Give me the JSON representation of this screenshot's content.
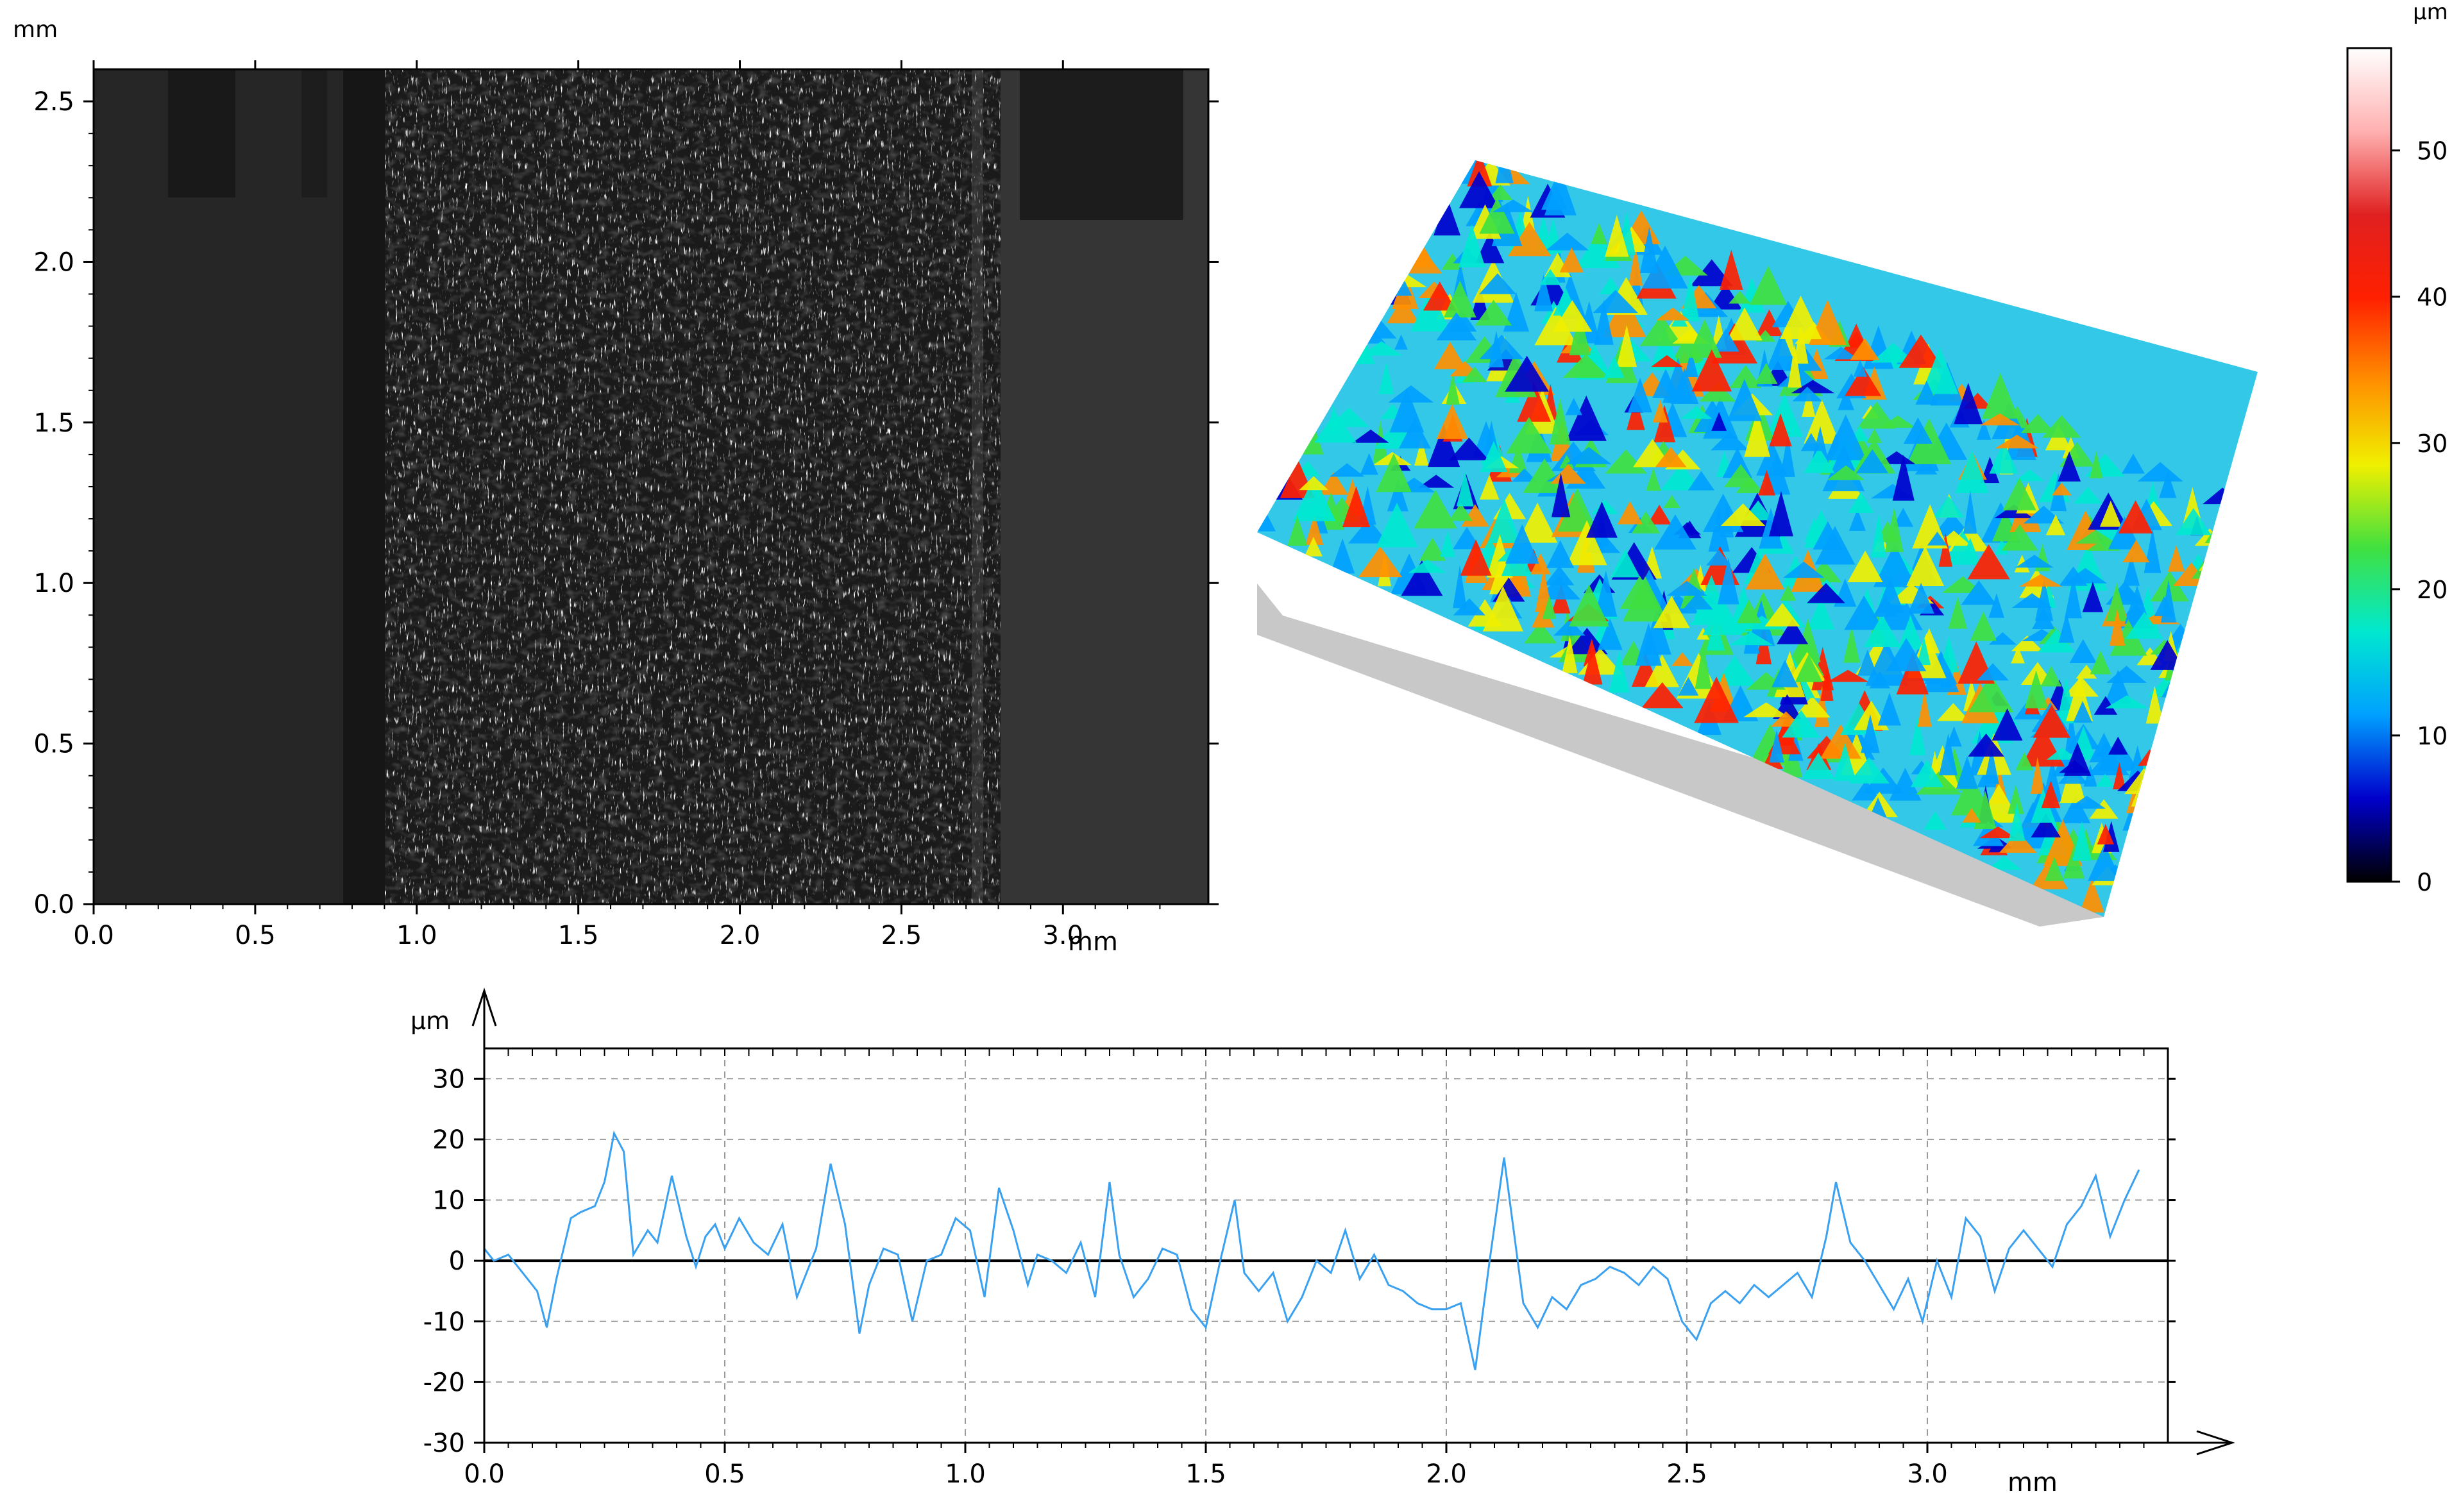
{
  "image_panel": {
    "y_unit": "mm",
    "x_unit": "mm",
    "x_ticks": [
      "0.0",
      "0.5",
      "1.0",
      "1.5",
      "2.0",
      "2.5",
      "3.0"
    ],
    "y_ticks": [
      "0.0",
      "0.5",
      "1.0",
      "1.5",
      "2.0",
      "2.5"
    ],
    "x_range": [
      0,
      3.45
    ],
    "y_range": [
      0,
      2.6
    ]
  },
  "colorbar": {
    "unit": "µm",
    "ticks": [
      "0",
      "10",
      "20",
      "30",
      "40",
      "50"
    ],
    "range": [
      0,
      57
    ],
    "stops": [
      "#000000",
      "#0000cc",
      "#00a0ff",
      "#00e8d0",
      "#40e040",
      "#f0f000",
      "#ff9000",
      "#ff2000",
      "#e02020",
      "#ffb0b0",
      "#ffffff"
    ]
  },
  "chart_data": {
    "type": "line",
    "title": "",
    "xlabel": "mm",
    "ylabel": "µm",
    "xlim": [
      0,
      3.5
    ],
    "ylim": [
      -30,
      35
    ],
    "grid": true,
    "x_ticks": [
      "0.0",
      "0.5",
      "1.0",
      "1.5",
      "2.0",
      "2.5",
      "3.0"
    ],
    "y_ticks": [
      "30",
      "20",
      "10",
      "0",
      "-10",
      "-20",
      "-30"
    ],
    "line_color": "#3aa0f0",
    "series": [
      {
        "x": [
          0.0,
          0.02,
          0.05,
          0.08,
          0.11,
          0.13,
          0.15,
          0.18,
          0.2,
          0.23,
          0.25,
          0.27,
          0.29,
          0.31,
          0.34,
          0.36,
          0.39,
          0.42,
          0.44,
          0.46,
          0.48,
          0.5,
          0.53,
          0.56,
          0.59,
          0.62,
          0.65,
          0.69,
          0.72,
          0.75,
          0.78,
          0.8,
          0.83,
          0.86,
          0.89,
          0.92,
          0.95,
          0.98,
          1.01,
          1.04,
          1.07,
          1.1,
          1.13,
          1.15,
          1.18,
          1.21,
          1.24,
          1.27,
          1.3,
          1.32,
          1.35,
          1.38,
          1.41,
          1.44,
          1.47,
          1.5,
          1.53,
          1.56,
          1.58,
          1.61,
          1.64,
          1.67,
          1.7,
          1.73,
          1.76,
          1.79,
          1.82,
          1.85,
          1.88,
          1.91,
          1.94,
          1.97,
          2.0,
          2.03,
          2.06,
          2.09,
          2.12,
          2.14,
          2.16,
          2.19,
          2.22,
          2.25,
          2.28,
          2.31,
          2.34,
          2.37,
          2.4,
          2.43,
          2.46,
          2.49,
          2.52,
          2.55,
          2.58,
          2.61,
          2.64,
          2.67,
          2.7,
          2.73,
          2.76,
          2.79,
          2.81,
          2.84,
          2.87,
          2.9,
          2.93,
          2.96,
          2.99,
          3.02,
          3.05,
          3.08,
          3.11,
          3.14,
          3.17,
          3.2,
          3.23,
          3.26,
          3.29,
          3.32,
          3.35,
          3.38,
          3.41,
          3.44
        ],
        "values": [
          2,
          0,
          1,
          -2,
          -5,
          -11,
          -3,
          7,
          8,
          9,
          13,
          21,
          18,
          1,
          5,
          3,
          14,
          4,
          -1,
          4,
          6,
          2,
          7,
          3,
          1,
          6,
          -6,
          2,
          16,
          6,
          -12,
          -4,
          2,
          1,
          -10,
          0,
          1,
          7,
          5,
          -6,
          12,
          5,
          -4,
          1,
          0,
          -2,
          3,
          -6,
          13,
          1,
          -6,
          -3,
          2,
          1,
          -8,
          -11,
          0,
          10,
          -2,
          -5,
          -2,
          -10,
          -6,
          0,
          -2,
          5,
          -3,
          1,
          -4,
          -5,
          -7,
          -8,
          -8,
          -7,
          -18,
          0,
          17,
          5,
          -7,
          -11,
          -6,
          -8,
          -4,
          -3,
          -1,
          -2,
          -4,
          -1,
          -3,
          -10,
          -13,
          -7,
          -5,
          -7,
          -4,
          -6,
          -4,
          -2,
          -6,
          4,
          13,
          3,
          0,
          -4,
          -8,
          -3,
          -10,
          0,
          -6,
          7,
          4,
          -5,
          2,
          5,
          2,
          -1,
          6,
          9,
          14,
          4,
          10,
          15
        ]
      }
    ]
  }
}
